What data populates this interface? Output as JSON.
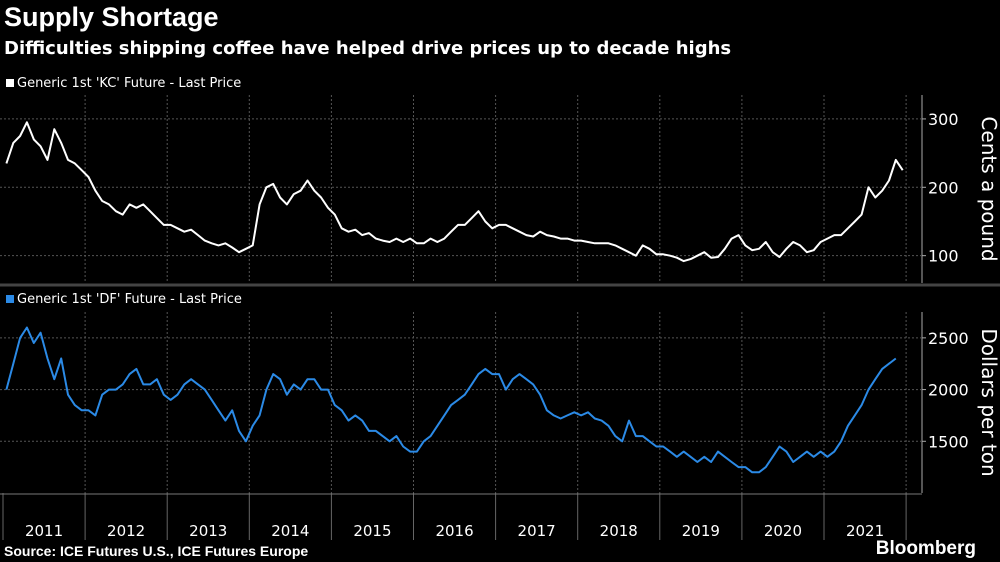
{
  "title": "Supply Shortage",
  "subtitle": "Difficulties shipping coffee have helped drive prices up to decade highs",
  "source": "Source: ICE Futures U.S., ICE Futures Europe",
  "brand": "Bloomberg",
  "chart_data": [
    {
      "type": "line",
      "legend": "Generic 1st 'KC' Future - Last Price",
      "ylabel": "Cents a pound",
      "color": "#ffffff",
      "ylim": [
        60,
        335
      ],
      "yticks": [
        100,
        200,
        300
      ],
      "start": "2011-01",
      "frequency": "monthly",
      "values": [
        235,
        265,
        275,
        295,
        270,
        260,
        240,
        285,
        265,
        240,
        235,
        225,
        215,
        195,
        180,
        175,
        165,
        160,
        175,
        170,
        175,
        165,
        155,
        145,
        145,
        140,
        135,
        138,
        130,
        122,
        118,
        115,
        118,
        112,
        105,
        110,
        115,
        175,
        200,
        205,
        185,
        175,
        190,
        195,
        210,
        195,
        185,
        170,
        160,
        140,
        135,
        138,
        130,
        133,
        125,
        122,
        120,
        125,
        120,
        125,
        118,
        118,
        125,
        120,
        125,
        135,
        145,
        145,
        155,
        165,
        150,
        140,
        145,
        145,
        140,
        135,
        130,
        128,
        135,
        130,
        128,
        125,
        125,
        122,
        122,
        120,
        118,
        118,
        118,
        115,
        110,
        105,
        100,
        115,
        110,
        102,
        102,
        100,
        97,
        92,
        95,
        100,
        105,
        97,
        98,
        110,
        125,
        130,
        115,
        108,
        110,
        120,
        105,
        98,
        110,
        120,
        115,
        105,
        108,
        120,
        125,
        130,
        130,
        140,
        150,
        160,
        200,
        185,
        195,
        210,
        240,
        225
      ]
    },
    {
      "type": "line",
      "legend": "Generic 1st 'DF' Future - Last Price",
      "ylabel": "Dollars per ton",
      "color": "#2b8ae6",
      "ylim": [
        1000,
        2750
      ],
      "yticks": [
        1500,
        2000,
        2500
      ],
      "start": "2011-01",
      "frequency": "monthly",
      "values": [
        2000,
        2250,
        2500,
        2600,
        2450,
        2550,
        2300,
        2100,
        2300,
        1950,
        1850,
        1800,
        1800,
        1750,
        1950,
        2000,
        2000,
        2050,
        2150,
        2200,
        2050,
        2050,
        2100,
        1950,
        1900,
        1950,
        2050,
        2100,
        2050,
        2000,
        1900,
        1800,
        1700,
        1800,
        1600,
        1500,
        1650,
        1750,
        2000,
        2150,
        2100,
        1950,
        2050,
        2000,
        2100,
        2100,
        2000,
        2000,
        1850,
        1800,
        1700,
        1750,
        1700,
        1600,
        1600,
        1550,
        1500,
        1550,
        1450,
        1400,
        1400,
        1500,
        1550,
        1650,
        1750,
        1850,
        1900,
        1950,
        2050,
        2150,
        2200,
        2150,
        2150,
        2000,
        2100,
        2150,
        2100,
        2050,
        1950,
        1800,
        1750,
        1720,
        1750,
        1780,
        1750,
        1780,
        1720,
        1700,
        1650,
        1550,
        1500,
        1700,
        1550,
        1550,
        1500,
        1450,
        1450,
        1400,
        1350,
        1400,
        1350,
        1300,
        1350,
        1300,
        1400,
        1350,
        1300,
        1250,
        1250,
        1200,
        1200,
        1250,
        1350,
        1450,
        1400,
        1300,
        1350,
        1400,
        1350,
        1400,
        1350,
        1400,
        1500,
        1650,
        1750,
        1850,
        2000,
        2100,
        2200,
        2250,
        2300
      ]
    }
  ],
  "xaxis": {
    "ticks": [
      "2011",
      "2012",
      "2013",
      "2014",
      "2015",
      "2016",
      "2017",
      "2018",
      "2019",
      "2020",
      "2021"
    ]
  }
}
